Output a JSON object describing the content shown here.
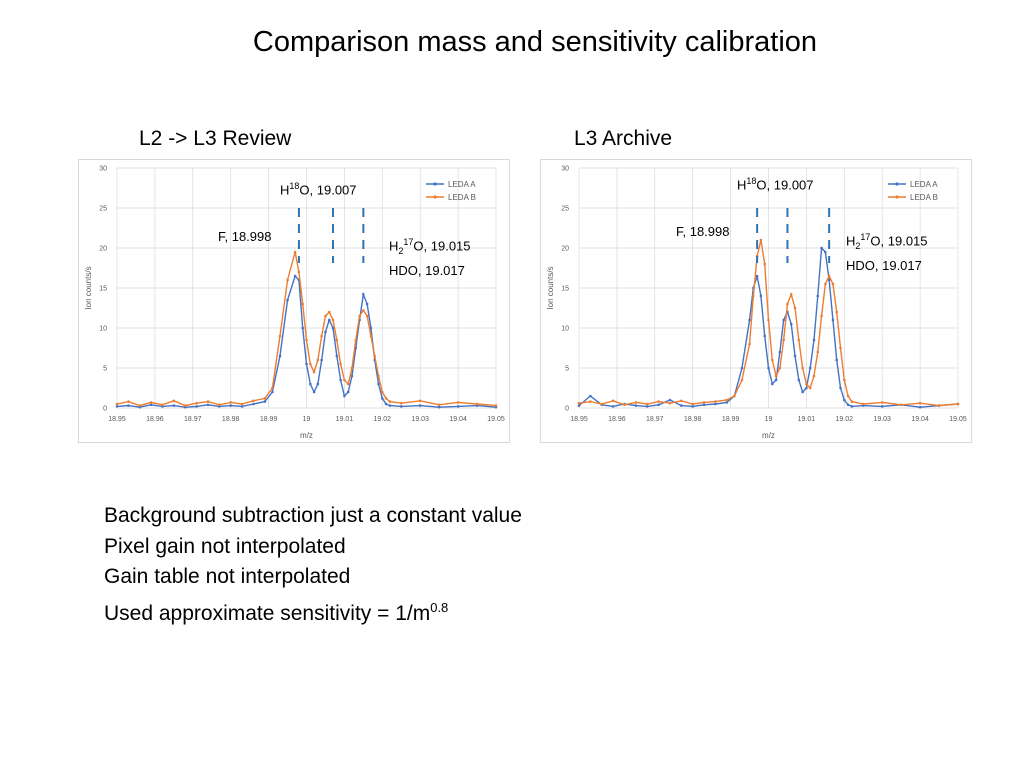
{
  "slide": {
    "title": "Comparison mass and sensitivity calibration",
    "notes": [
      {
        "text": "Background subtraction just a constant value"
      },
      {
        "text": "Pixel gain not interpolated"
      },
      {
        "text": "Gain table not interpolated"
      },
      {
        "text": "Used approximate sensitivity = 1/m",
        "sup": "0.8"
      }
    ]
  },
  "chart_data": [
    {
      "type": "line",
      "subtitle": "L2 -> L3 Review",
      "xlabel": "m/z",
      "ylabel": "Ion counts/s",
      "xlim": [
        18.95,
        19.05
      ],
      "ylim": [
        0,
        30
      ],
      "xticks": [
        "18.95",
        "18.96",
        "18.97",
        "18.98",
        "18.99",
        "19",
        "19.01",
        "19.02",
        "19.03",
        "19.04",
        "19.05"
      ],
      "yticks": [
        "0",
        "5",
        "10",
        "15",
        "20",
        "25",
        "30"
      ],
      "grid": true,
      "legend": "top-right",
      "annotations": [
        {
          "id": "h18o",
          "base": "H",
          "sup": "18",
          "rest": "O, 19.007",
          "x": 19.007
        },
        {
          "id": "f",
          "text": "F, 18.998",
          "x": 18.998
        },
        {
          "id": "h217o",
          "base": "H",
          "sub": "2",
          "sup": "17",
          "rest": "O, 19.015",
          "x2": "HDO, 19.017",
          "x": 19.015
        }
      ],
      "series": [
        {
          "name": "LEDA A",
          "color": "#4472c4",
          "x": [
            18.95,
            18.953,
            18.956,
            18.959,
            18.962,
            18.965,
            18.968,
            18.971,
            18.974,
            18.977,
            18.98,
            18.983,
            18.986,
            18.989,
            18.991,
            18.993,
            18.995,
            18.997,
            18.998,
            18.999,
            19.0,
            19.001,
            19.002,
            19.003,
            19.004,
            19.005,
            19.006,
            19.007,
            19.008,
            19.009,
            19.01,
            19.011,
            19.012,
            19.013,
            19.014,
            19.015,
            19.016,
            19.017,
            19.018,
            19.019,
            19.02,
            19.021,
            19.022,
            19.025,
            19.03,
            19.035,
            19.04,
            19.045,
            19.05
          ],
          "y": [
            0.2,
            0.3,
            0.1,
            0.4,
            0.2,
            0.3,
            0.1,
            0.2,
            0.4,
            0.2,
            0.3,
            0.2,
            0.5,
            0.8,
            2.0,
            6.5,
            13.5,
            16.5,
            16.0,
            10.0,
            5.5,
            3.0,
            2.0,
            3.0,
            6.0,
            9.5,
            11.0,
            10.0,
            6.5,
            3.5,
            1.5,
            2.0,
            4.0,
            7.5,
            11.0,
            14.2,
            13.0,
            10.0,
            6.0,
            3.0,
            1.2,
            0.5,
            0.3,
            0.2,
            0.3,
            0.1,
            0.2,
            0.3,
            0.1
          ]
        },
        {
          "name": "LEDA B",
          "color": "#ed7d31",
          "x": [
            18.95,
            18.953,
            18.956,
            18.959,
            18.962,
            18.965,
            18.968,
            18.971,
            18.974,
            18.977,
            18.98,
            18.983,
            18.986,
            18.989,
            18.991,
            18.993,
            18.995,
            18.997,
            18.998,
            18.999,
            19.0,
            19.001,
            19.002,
            19.003,
            19.004,
            19.005,
            19.006,
            19.007,
            19.008,
            19.009,
            19.01,
            19.011,
            19.012,
            19.013,
            19.014,
            19.015,
            19.016,
            19.017,
            19.018,
            19.019,
            19.02,
            19.021,
            19.022,
            19.025,
            19.03,
            19.035,
            19.04,
            19.045,
            19.05
          ],
          "y": [
            0.5,
            0.8,
            0.3,
            0.7,
            0.4,
            0.9,
            0.3,
            0.6,
            0.8,
            0.4,
            0.7,
            0.5,
            0.9,
            1.2,
            2.5,
            9.0,
            16.0,
            19.5,
            17.0,
            13.0,
            8.5,
            5.5,
            4.5,
            6.0,
            9.0,
            11.5,
            12.0,
            11.0,
            8.5,
            5.5,
            3.5,
            3.0,
            5.0,
            8.5,
            11.5,
            12.2,
            11.5,
            9.0,
            6.5,
            4.0,
            2.0,
            1.2,
            0.8,
            0.6,
            0.9,
            0.4,
            0.7,
            0.5,
            0.3
          ]
        }
      ]
    },
    {
      "type": "line",
      "subtitle": "L3 Archive",
      "xlabel": "m/z",
      "ylabel": "Ion counts/s",
      "xlim": [
        18.95,
        19.05
      ],
      "ylim": [
        0,
        30
      ],
      "xticks": [
        "18.95",
        "18.96",
        "18.97",
        "18.98",
        "18.99",
        "19",
        "19.01",
        "19.02",
        "19.03",
        "19.04",
        "19.05"
      ],
      "yticks": [
        "0",
        "5",
        "10",
        "15",
        "20",
        "25",
        "30"
      ],
      "grid": true,
      "legend": "top-right",
      "annotations": [
        {
          "id": "h18o",
          "base": "H",
          "sup": "18",
          "rest": "O, 19.007",
          "x": 19.005
        },
        {
          "id": "f",
          "text": "F, 18.998",
          "x": 18.997
        },
        {
          "id": "h217o",
          "base": "H",
          "sub": "2",
          "sup": "17",
          "rest": "O, 19.015",
          "x2": "HDO, 19.017",
          "x": 19.016
        }
      ],
      "series": [
        {
          "name": "LEDA A",
          "color": "#4472c4",
          "x": [
            18.95,
            18.953,
            18.956,
            18.959,
            18.962,
            18.965,
            18.968,
            18.971,
            18.974,
            18.977,
            18.98,
            18.983,
            18.986,
            18.989,
            18.991,
            18.993,
            18.995,
            18.996,
            18.997,
            18.998,
            18.999,
            19.0,
            19.001,
            19.002,
            19.003,
            19.004,
            19.005,
            19.006,
            19.007,
            19.008,
            19.009,
            19.01,
            19.011,
            19.012,
            19.013,
            19.014,
            19.015,
            19.016,
            19.017,
            19.018,
            19.019,
            19.02,
            19.021,
            19.022,
            19.025,
            19.03,
            19.035,
            19.04,
            19.045,
            19.05
          ],
          "y": [
            0.3,
            1.5,
            0.4,
            0.2,
            0.5,
            0.3,
            0.2,
            0.4,
            1.0,
            0.3,
            0.2,
            0.4,
            0.5,
            0.7,
            1.5,
            5.0,
            11.0,
            15.0,
            16.5,
            14.0,
            9.0,
            5.0,
            3.0,
            3.5,
            7.0,
            11.0,
            12.0,
            10.5,
            6.5,
            3.5,
            2.0,
            2.5,
            5.0,
            8.5,
            14.0,
            20.0,
            19.5,
            16.0,
            11.0,
            6.0,
            2.5,
            1.0,
            0.4,
            0.2,
            0.3,
            0.2,
            0.4,
            0.1,
            0.3,
            0.5
          ]
        },
        {
          "name": "LEDA B",
          "color": "#ed7d31",
          "x": [
            18.95,
            18.953,
            18.956,
            18.959,
            18.962,
            18.965,
            18.968,
            18.971,
            18.974,
            18.977,
            18.98,
            18.983,
            18.986,
            18.989,
            18.991,
            18.993,
            18.995,
            18.996,
            18.997,
            18.998,
            18.999,
            19.0,
            19.001,
            19.002,
            19.003,
            19.004,
            19.005,
            19.006,
            19.007,
            19.008,
            19.009,
            19.01,
            19.011,
            19.012,
            19.013,
            19.014,
            19.015,
            19.016,
            19.017,
            19.018,
            19.019,
            19.02,
            19.021,
            19.022,
            19.025,
            19.03,
            19.035,
            19.04,
            19.045,
            19.05
          ],
          "y": [
            0.6,
            0.8,
            0.5,
            0.9,
            0.4,
            0.7,
            0.5,
            0.8,
            0.6,
            0.9,
            0.5,
            0.7,
            0.8,
            1.0,
            1.5,
            3.5,
            8.0,
            14.0,
            19.0,
            21.0,
            18.0,
            11.0,
            6.0,
            4.0,
            5.0,
            8.5,
            13.0,
            14.2,
            12.5,
            8.5,
            5.0,
            3.0,
            2.5,
            4.0,
            7.0,
            11.5,
            15.5,
            16.5,
            15.5,
            12.0,
            7.5,
            3.5,
            1.5,
            0.8,
            0.5,
            0.7,
            0.4,
            0.6,
            0.3,
            0.5
          ]
        }
      ]
    }
  ]
}
